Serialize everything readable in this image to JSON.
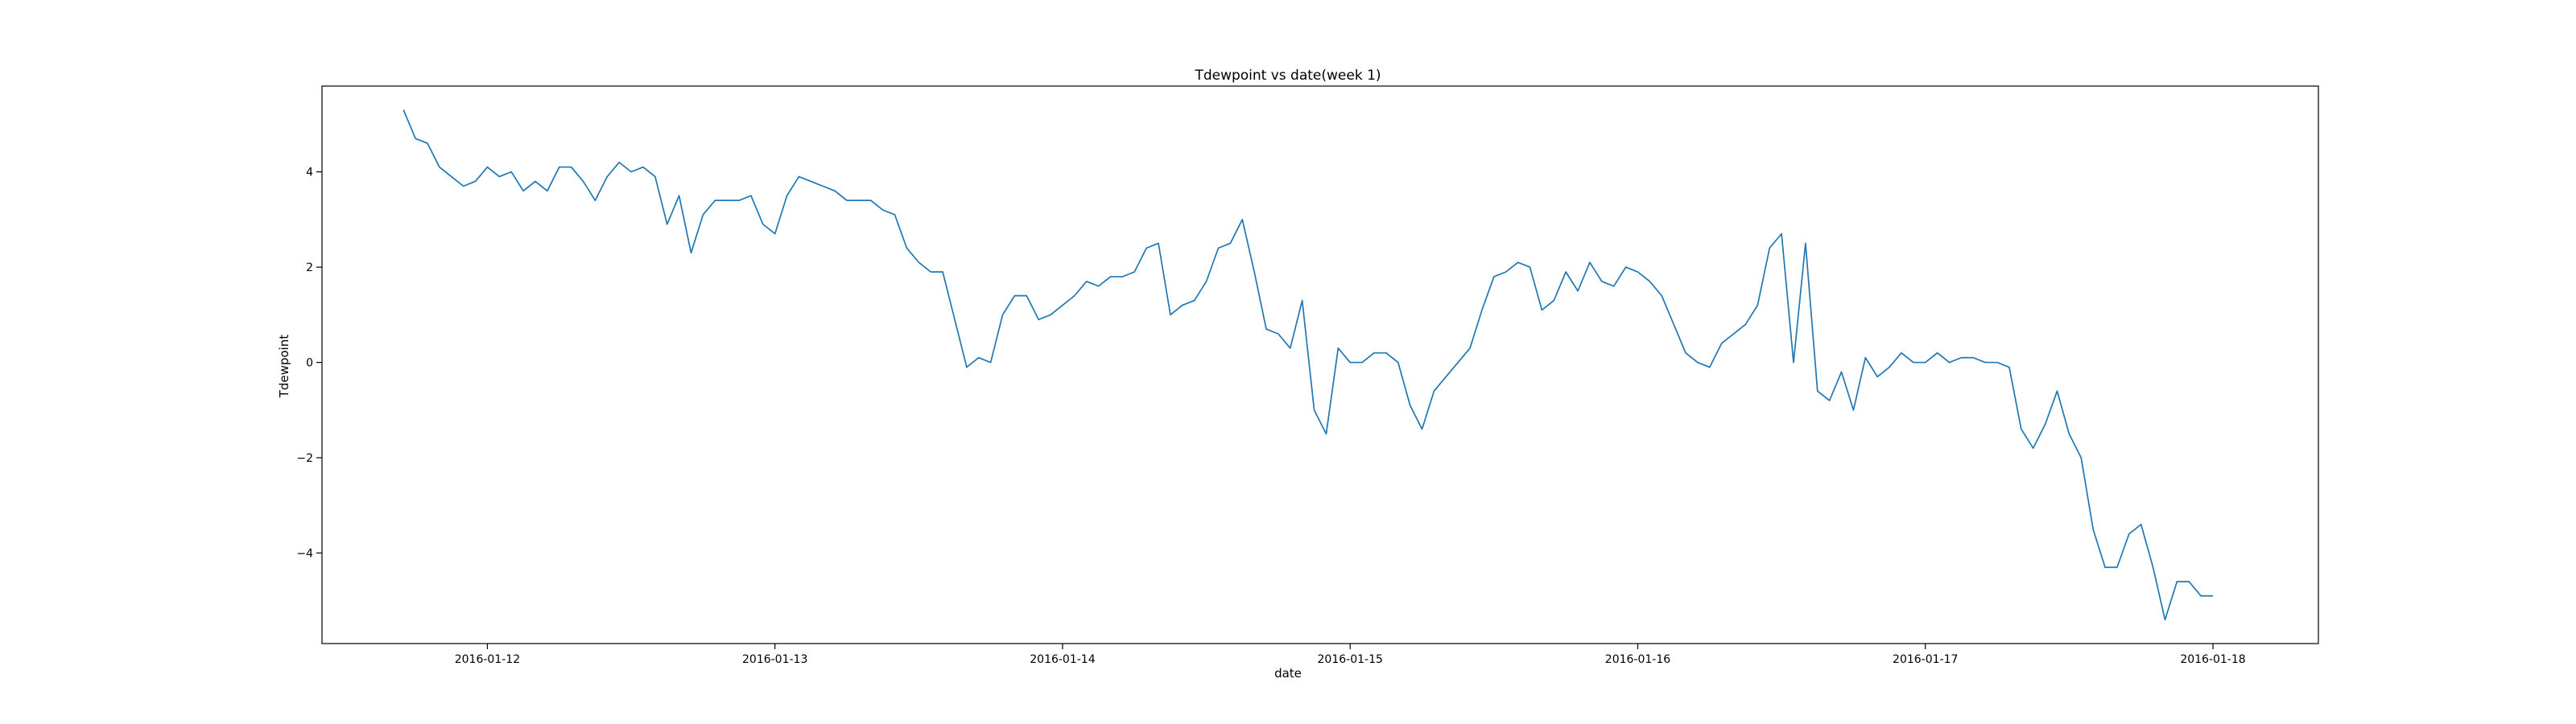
{
  "chart_data": {
    "type": "line",
    "title": "Tdewpoint vs date(week 1)",
    "xlabel": "date",
    "ylabel": "Tdewpoint",
    "x_ticks": [
      "2016-01-12",
      "2016-01-13",
      "2016-01-14",
      "2016-01-15",
      "2016-01-16",
      "2016-01-17",
      "2016-01-18"
    ],
    "y_ticks": [
      "−4",
      "−2",
      "0",
      "2",
      "4"
    ],
    "y_tick_values": [
      -4,
      -2,
      0,
      2,
      4
    ],
    "xlim": [
      "2016-01-11 10:12",
      "2016-01-18 08:48"
    ],
    "ylim": [
      -5.9,
      5.8
    ],
    "grid": false,
    "legend": "none",
    "colors": {
      "line": "#1f77b4",
      "axes": "#000000",
      "background": "#ffffff"
    },
    "series": [
      {
        "x_start": "2016-01-11 17:00",
        "x_step_hours": 1,
        "values": [
          5.3,
          4.7,
          4.6,
          4.1,
          3.9,
          3.7,
          3.8,
          4.1,
          3.9,
          4.0,
          3.6,
          3.8,
          3.6,
          4.1,
          4.1,
          3.8,
          3.4,
          3.9,
          4.2,
          4.0,
          4.1,
          3.9,
          2.9,
          3.5,
          2.3,
          3.1,
          3.4,
          3.4,
          3.4,
          3.5,
          2.9,
          2.7,
          3.5,
          3.9,
          3.8,
          3.7,
          3.6,
          3.4,
          3.4,
          3.4,
          3.2,
          3.1,
          2.4,
          2.1,
          1.9,
          1.9,
          0.9,
          -0.1,
          0.1,
          0.0,
          1.0,
          1.4,
          1.4,
          0.9,
          1.0,
          1.2,
          1.4,
          1.7,
          1.6,
          1.8,
          1.8,
          1.9,
          2.4,
          2.5,
          1.0,
          1.2,
          1.3,
          1.7,
          2.4,
          2.5,
          3.0,
          1.9,
          0.7,
          0.6,
          0.3,
          1.3,
          -1.0,
          -1.5,
          0.3,
          0.0,
          0.0,
          0.2,
          0.2,
          0.0,
          -0.9,
          -1.4,
          -0.6,
          -0.3,
          0.0,
          0.3,
          1.1,
          1.8,
          1.9,
          2.1,
          2.0,
          1.1,
          1.3,
          1.9,
          1.5,
          2.1,
          1.7,
          1.6,
          2.0,
          1.9,
          1.7,
          1.4,
          0.8,
          0.2,
          0.0,
          -0.1,
          0.4,
          0.6,
          0.8,
          1.2,
          2.4,
          2.7,
          0.0,
          2.5,
          -0.6,
          -0.8,
          -0.2,
          -1.0,
          0.1,
          -0.3,
          -0.1,
          0.2,
          0.0,
          0.0,
          0.2,
          0.0,
          0.1,
          0.1,
          0.0,
          0.0,
          -0.1,
          -1.4,
          -1.8,
          -1.3,
          -0.6,
          -1.5,
          -2.0,
          -3.5,
          -4.3,
          -4.3,
          -3.6,
          -3.4,
          -4.3,
          -5.4,
          -4.6,
          -4.6,
          -4.9,
          -4.9
        ]
      }
    ]
  }
}
